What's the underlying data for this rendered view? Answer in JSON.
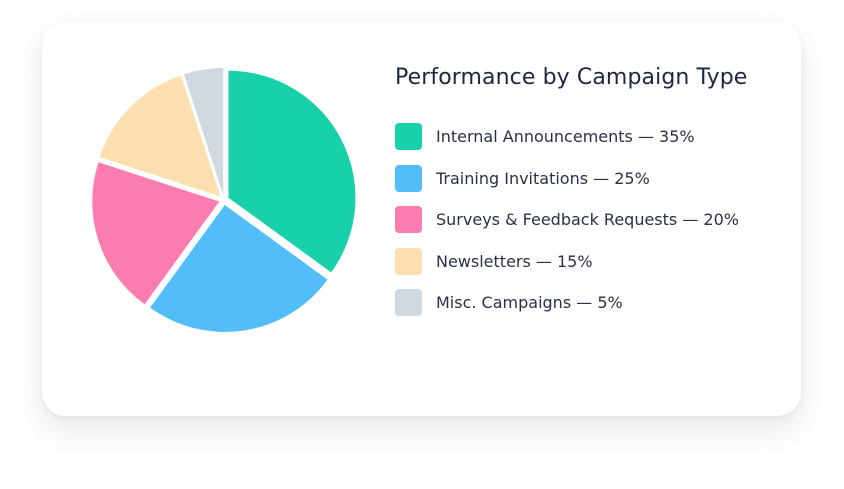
{
  "chart_data": {
    "type": "pie",
    "title": "Performance by Campaign Type",
    "series": [
      {
        "name": "Internal Announcements",
        "value": 35,
        "color": "#18d1ab"
      },
      {
        "name": "Training Invitations",
        "value": 25,
        "color": "#53bdfa"
      },
      {
        "name": "Surveys & Feedback Requests",
        "value": 20,
        "color": "#fd7cb0"
      },
      {
        "name": "Newsletters",
        "value": 15,
        "color": "#fee0b0"
      },
      {
        "name": "Misc. Campaigns",
        "value": 5,
        "color": "#d0d8e0"
      }
    ],
    "legend": [
      "Internal Announcements — 35%",
      "Training Invitations — 25%",
      "Surveys & Feedback Requests — 20%",
      "Newsletters — 15%",
      "Misc. Campaigns — 5%"
    ],
    "legend_position": "right"
  }
}
